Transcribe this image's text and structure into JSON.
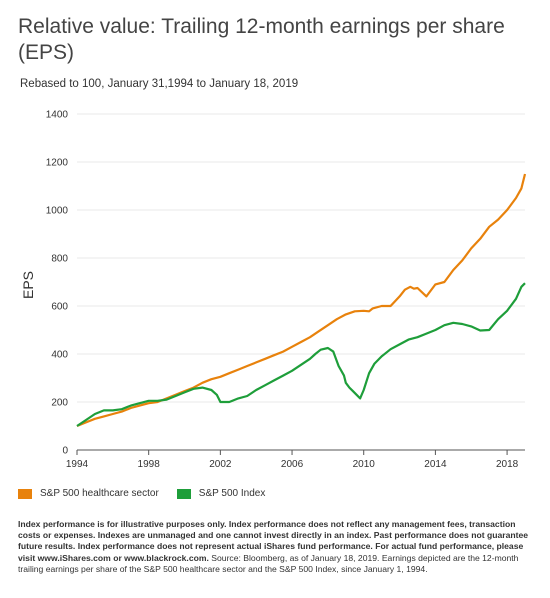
{
  "chart_data": {
    "type": "line",
    "title": "Relative value: Trailing 12-month earnings per share (EPS)",
    "subtitle": "Rebased to 100, January 31,1994 to January 18, 2019",
    "xlabel": "",
    "ylabel": "EPS",
    "xlim": [
      1994,
      2019
    ],
    "ylim": [
      0,
      1400
    ],
    "x_ticks": [
      "1994",
      "1998",
      "2002",
      "2006",
      "2010",
      "2014",
      "2018"
    ],
    "y_ticks": [
      "0",
      "200",
      "400",
      "600",
      "800",
      "1000",
      "1200",
      "1400"
    ],
    "grid": "horizontal",
    "legend_position": "bottom-left",
    "series": [
      {
        "name": "S&P 500 healthcare sector",
        "color": "#E8820C",
        "x": [
          1994,
          1994.5,
          1995,
          1995.5,
          1996,
          1996.5,
          1997,
          1997.5,
          1998,
          1998.5,
          1999,
          1999.5,
          2000,
          2000.5,
          2001,
          2001.5,
          2002,
          2002.5,
          2003,
          2003.5,
          2004,
          2004.5,
          2005,
          2005.5,
          2006,
          2006.5,
          2007,
          2007.5,
          2008,
          2008.5,
          2009,
          2009.5,
          2010,
          2010.3,
          2010.5,
          2011,
          2011.5,
          2012,
          2012.3,
          2012.6,
          2012.8,
          2013,
          2013.5,
          2014,
          2014.5,
          2015,
          2015.5,
          2016,
          2016.5,
          2017,
          2017.5,
          2018,
          2018.5,
          2018.8,
          2019
        ],
        "values": [
          100,
          115,
          130,
          140,
          150,
          160,
          175,
          185,
          195,
          200,
          215,
          230,
          245,
          260,
          280,
          295,
          305,
          320,
          335,
          350,
          365,
          380,
          395,
          410,
          430,
          450,
          470,
          495,
          520,
          545,
          565,
          578,
          580,
          578,
          590,
          600,
          600,
          640,
          668,
          680,
          672,
          675,
          640,
          690,
          700,
          750,
          790,
          840,
          880,
          930,
          960,
          1000,
          1050,
          1090,
          1150
        ]
      },
      {
        "name": "S&P 500 Index",
        "color": "#1E9E3A",
        "x": [
          1994,
          1994.5,
          1995,
          1995.5,
          1996,
          1996.5,
          1997,
          1997.5,
          1998,
          1998.5,
          1999,
          1999.5,
          2000,
          2000.5,
          2001,
          2001.5,
          2001.8,
          2002,
          2002.5,
          2003,
          2003.5,
          2004,
          2004.5,
          2005,
          2005.5,
          2006,
          2006.5,
          2007,
          2007.3,
          2007.6,
          2008,
          2008.3,
          2008.6,
          2008.9,
          2009,
          2009.2,
          2009.4,
          2009.6,
          2009.8,
          2010,
          2010.3,
          2010.6,
          2011,
          2011.5,
          2012,
          2012.5,
          2013,
          2013.5,
          2014,
          2014.5,
          2015,
          2015.5,
          2016,
          2016.5,
          2017,
          2017.5,
          2018,
          2018.5,
          2018.8,
          2019
        ],
        "values": [
          100,
          125,
          150,
          165,
          165,
          170,
          185,
          195,
          205,
          205,
          210,
          225,
          240,
          255,
          260,
          250,
          230,
          200,
          200,
          215,
          225,
          250,
          270,
          290,
          310,
          330,
          355,
          380,
          400,
          418,
          425,
          410,
          350,
          310,
          280,
          260,
          245,
          230,
          215,
          250,
          320,
          360,
          390,
          420,
          440,
          460,
          470,
          485,
          500,
          520,
          530,
          525,
          515,
          498,
          500,
          545,
          580,
          630,
          680,
          695
        ]
      }
    ]
  },
  "notes": {
    "bold": "Index performance is for illustrative purposes only. Index performance does not reflect any management fees, transaction costs or expenses. Indexes are unmanaged and one cannot invest directly in an index. Past performance does not guarantee future results. Index performance does not represent actual iShares fund performance. For actual fund performance, please visit www.iShares.com or www.blackrock.com.",
    "normal": " Source: Bloomberg, as of January 18, 2019. Earnings depicted are the 12-month trailing earnings per share of the S&P 500 healthcare sector and the S&P 500 Index, since January 1, 1994."
  }
}
